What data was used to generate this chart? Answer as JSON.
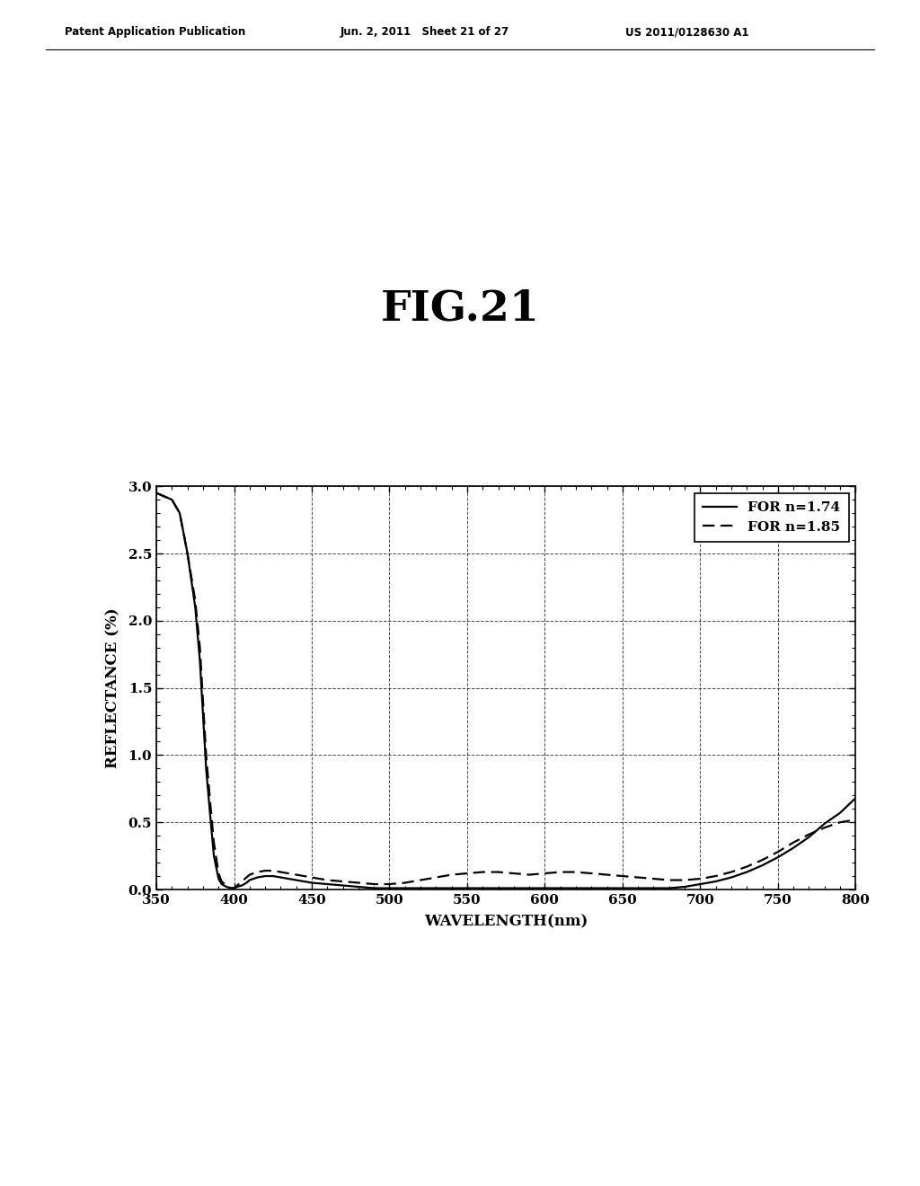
{
  "title": "FIG.21",
  "xlabel": "WAVELENGTH(nm)",
  "ylabel": "REFLECTANCE (%)",
  "xlim": [
    350,
    800
  ],
  "ylim": [
    0.0,
    3.0
  ],
  "xticks": [
    350,
    400,
    450,
    500,
    550,
    600,
    650,
    700,
    750,
    800
  ],
  "yticks": [
    0.0,
    0.5,
    1.0,
    1.5,
    2.0,
    2.5,
    3.0
  ],
  "legend1": "FOR n=1.74",
  "legend2": "FOR n=1.85",
  "header_left": "Patent Application Publication",
  "header_mid": "Jun. 2, 2011   Sheet 21 of 27",
  "header_right": "US 2011/0128630 A1",
  "background_color": "#ffffff",
  "line_color": "#000000",
  "curve1_x": [
    350,
    360,
    365,
    370,
    375,
    378,
    380,
    382,
    385,
    387,
    390,
    392,
    395,
    398,
    400,
    402,
    405,
    408,
    410,
    415,
    420,
    425,
    430,
    435,
    440,
    450,
    460,
    470,
    480,
    490,
    500,
    510,
    520,
    530,
    540,
    550,
    560,
    570,
    580,
    590,
    600,
    610,
    620,
    630,
    640,
    650,
    660,
    670,
    680,
    690,
    700,
    710,
    720,
    730,
    740,
    750,
    760,
    770,
    780,
    790,
    800
  ],
  "curve1_y": [
    2.95,
    2.9,
    2.8,
    2.5,
    2.1,
    1.7,
    1.3,
    0.9,
    0.5,
    0.25,
    0.08,
    0.04,
    0.02,
    0.01,
    0.01,
    0.02,
    0.03,
    0.05,
    0.07,
    0.09,
    0.1,
    0.1,
    0.09,
    0.08,
    0.07,
    0.05,
    0.04,
    0.03,
    0.02,
    0.01,
    0.01,
    0.01,
    0.01,
    0.01,
    0.01,
    0.01,
    0.01,
    0.01,
    0.01,
    0.01,
    0.01,
    0.01,
    0.01,
    0.01,
    0.01,
    0.01,
    0.01,
    0.01,
    0.01,
    0.02,
    0.04,
    0.06,
    0.09,
    0.13,
    0.18,
    0.24,
    0.31,
    0.39,
    0.49,
    0.57,
    0.68
  ],
  "curve2_x": [
    350,
    360,
    365,
    370,
    375,
    378,
    380,
    382,
    385,
    387,
    390,
    392,
    395,
    398,
    400,
    402,
    405,
    408,
    410,
    415,
    420,
    425,
    430,
    435,
    440,
    450,
    460,
    470,
    480,
    490,
    500,
    510,
    520,
    530,
    540,
    550,
    560,
    570,
    580,
    590,
    600,
    610,
    620,
    630,
    640,
    650,
    660,
    670,
    680,
    690,
    700,
    710,
    720,
    730,
    740,
    750,
    760,
    770,
    780,
    790,
    800
  ],
  "curve2_y": [
    2.95,
    2.9,
    2.8,
    2.5,
    2.15,
    1.8,
    1.4,
    1.0,
    0.6,
    0.35,
    0.12,
    0.06,
    0.03,
    0.01,
    0.01,
    0.03,
    0.06,
    0.09,
    0.11,
    0.13,
    0.14,
    0.14,
    0.13,
    0.12,
    0.11,
    0.09,
    0.07,
    0.06,
    0.05,
    0.04,
    0.04,
    0.05,
    0.07,
    0.09,
    0.11,
    0.12,
    0.13,
    0.13,
    0.12,
    0.11,
    0.12,
    0.13,
    0.13,
    0.12,
    0.11,
    0.1,
    0.09,
    0.08,
    0.07,
    0.07,
    0.08,
    0.1,
    0.13,
    0.17,
    0.22,
    0.28,
    0.35,
    0.41,
    0.46,
    0.5,
    0.52
  ]
}
